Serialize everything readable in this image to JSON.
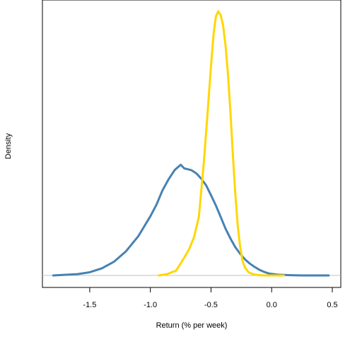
{
  "chart_data": {
    "type": "line",
    "title": "",
    "xlabel": "Return (% per week)",
    "ylabel": "Density",
    "xlim": [
      -1.89,
      0.57
    ],
    "ylim": [
      0,
      1
    ],
    "x_ticks": [
      -1.5,
      -1.0,
      -0.5,
      0.0,
      0.5
    ],
    "x_tick_labels": [
      "-1.5",
      "-1.0",
      "-0.5",
      "0.0",
      "0.5"
    ],
    "y_ticks_shown": false,
    "baseline_color": "#c0c0c0",
    "series": [
      {
        "color": "#4682b4",
        "x": [
          -1.8,
          -1.6,
          -1.5,
          -1.4,
          -1.3,
          -1.2,
          -1.1,
          -1.0,
          -0.95,
          -0.9,
          -0.85,
          -0.8,
          -0.75,
          -0.72,
          -0.69,
          -0.66,
          -0.62,
          -0.58,
          -0.54,
          -0.5,
          -0.46,
          -0.42,
          -0.38,
          -0.34,
          -0.3,
          -0.26,
          -0.22,
          -0.18,
          -0.14,
          -0.1,
          -0.06,
          -0.02,
          0.05,
          0.15,
          0.25,
          0.35,
          0.47
        ],
        "y": [
          0.0,
          0.005,
          0.012,
          0.027,
          0.052,
          0.092,
          0.148,
          0.224,
          0.268,
          0.322,
          0.364,
          0.399,
          0.419,
          0.405,
          0.402,
          0.398,
          0.386,
          0.366,
          0.341,
          0.304,
          0.265,
          0.221,
          0.177,
          0.14,
          0.107,
          0.082,
          0.061,
          0.045,
          0.032,
          0.021,
          0.013,
          0.007,
          0.003,
          0.001,
          0.0,
          0.0,
          0.0
        ]
      },
      {
        "color": "#ffd700",
        "x": [
          -0.93,
          -0.86,
          -0.82,
          -0.79,
          -0.76,
          -0.72,
          -0.68,
          -0.64,
          -0.6,
          -0.56,
          -0.53,
          -0.5,
          -0.48,
          -0.46,
          -0.44,
          -0.42,
          -0.4,
          -0.38,
          -0.36,
          -0.34,
          -0.32,
          -0.3,
          -0.28,
          -0.26,
          -0.24,
          -0.22,
          -0.19,
          -0.15,
          -0.1,
          -0.05,
          0.0,
          0.05,
          0.1
        ],
        "y": [
          0.0,
          0.005,
          0.013,
          0.017,
          0.038,
          0.068,
          0.1,
          0.145,
          0.222,
          0.425,
          0.605,
          0.79,
          0.91,
          0.98,
          1.0,
          0.985,
          0.945,
          0.87,
          0.76,
          0.62,
          0.46,
          0.31,
          0.19,
          0.11,
          0.055,
          0.03,
          0.012,
          0.004,
          0.001,
          0.0,
          0.0,
          0.0,
          0.0
        ]
      }
    ]
  }
}
